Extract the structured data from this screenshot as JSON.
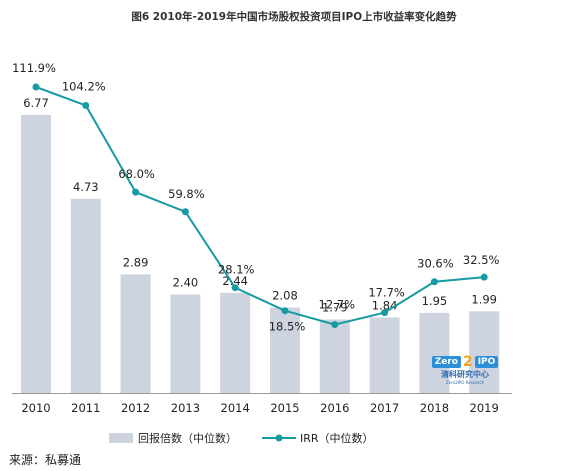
{
  "title": "图6 2010年-2019年中国市场股权投资项目IPO上市收益率变化趋势",
  "source": "来源：私募通",
  "watermark": {
    "brand_left": "Zero",
    "brand_mid": "2",
    "brand_right": "IPO",
    "brand_cn": "清科研究中心",
    "brand_en": "Zero2IPO Research"
  },
  "colors": {
    "bar": "#cdd3df",
    "line": "#169aa3"
  },
  "chart_data": {
    "type": "bar+line",
    "categories": [
      "2010",
      "2011",
      "2012",
      "2013",
      "2014",
      "2015",
      "2016",
      "2017",
      "2018",
      "2019"
    ],
    "series": [
      {
        "name": "回报倍数（中位数）",
        "type": "bar",
        "axis": "left",
        "values": [
          6.77,
          4.73,
          2.89,
          2.4,
          2.44,
          2.08,
          1.79,
          1.84,
          1.95,
          1.99
        ],
        "labels": [
          "6.77",
          "4.73",
          "2.89",
          "2.40",
          "2.44",
          "2.08",
          "1.79",
          "1.84",
          "1.95",
          "1.99"
        ]
      },
      {
        "name": "IRR（中位数）",
        "type": "line",
        "axis": "right",
        "values": [
          111.9,
          104.2,
          68.0,
          59.8,
          28.1,
          18.5,
          12.7,
          17.7,
          30.6,
          32.5
        ],
        "labels": [
          "111.9%",
          "104.2%",
          "68.0%",
          "59.8%",
          "28.1%",
          "18.5%",
          "12.7%",
          "17.7%",
          "30.6%",
          "32.5%"
        ]
      }
    ],
    "axes": {
      "left_range": [
        0,
        7.5
      ],
      "right_range": [
        0,
        120
      ],
      "gridlines": false
    },
    "legend": {
      "position": "bottom"
    }
  }
}
